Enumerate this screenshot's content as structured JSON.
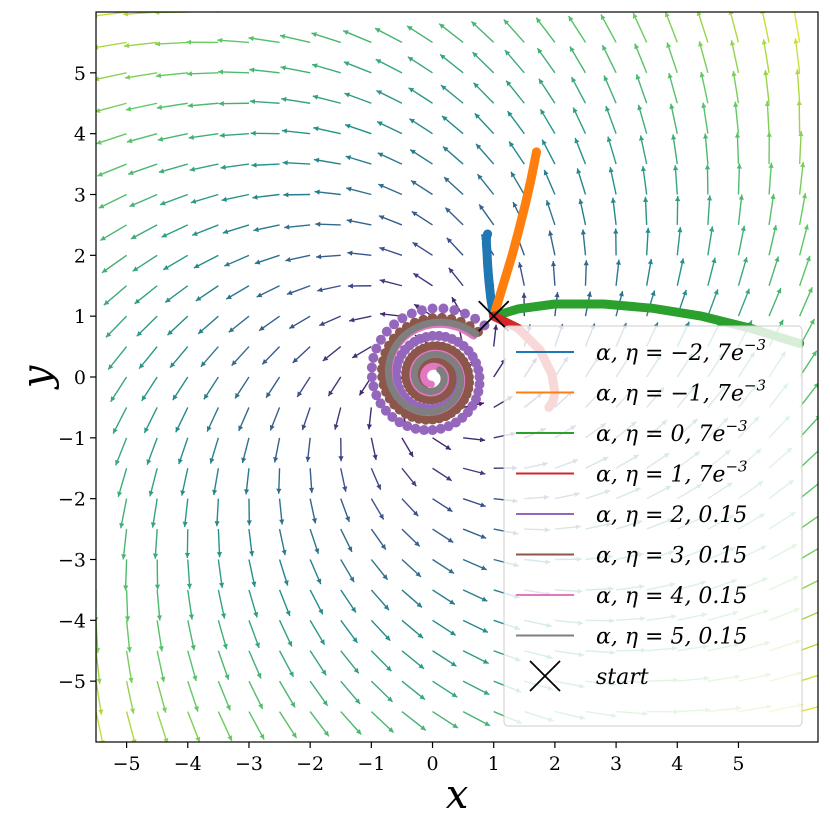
{
  "chart_data": {
    "type": "scatter",
    "subtype": "vector-field-with-trajectories",
    "title": "",
    "xlabel": "x",
    "ylabel": "y",
    "xlim": [
      -5.5,
      6.3
    ],
    "ylim": [
      -6.0,
      6.0
    ],
    "xticks": [
      "−5",
      "−4",
      "−3",
      "−2",
      "−1",
      "0",
      "1",
      "2",
      "3",
      "4",
      "5"
    ],
    "yticks": [
      "−5",
      "−4",
      "−3",
      "−2",
      "−1",
      "0",
      "1",
      "2",
      "3",
      "4",
      "5"
    ],
    "xtick_values": [
      -5,
      -4,
      -3,
      -2,
      -1,
      0,
      1,
      2,
      3,
      4,
      5
    ],
    "ytick_values": [
      -5,
      -4,
      -3,
      -2,
      -1,
      0,
      1,
      2,
      3,
      4,
      5
    ],
    "grid": false,
    "legend_position": "bottom-right",
    "field": {
      "description_of_rule": "rotational vector field with outward drift",
      "grid_min": -5.5,
      "grid_max": 6.0,
      "grid_step": 0.5,
      "colormap": "viridis"
    },
    "start": {
      "x": 1.0,
      "y": 1.0,
      "label": "start",
      "color": "#000000"
    },
    "series": [
      {
        "name": "α, η = −2, 7e−3",
        "color": "#1f77b4",
        "x": [
          1.0,
          0.95,
          0.92,
          0.9,
          0.89,
          0.88,
          0.88,
          0.9
        ],
        "y": [
          1.0,
          1.3,
          1.6,
          1.85,
          2.05,
          2.2,
          2.3,
          2.35
        ]
      },
      {
        "name": "α, η = −1, 7e−3",
        "color": "#ff7f0e",
        "x": [
          1.0,
          1.15,
          1.3,
          1.42,
          1.52,
          1.6,
          1.66,
          1.7
        ],
        "y": [
          1.0,
          1.5,
          2.0,
          2.45,
          2.85,
          3.2,
          3.5,
          3.7
        ]
      },
      {
        "name": "α, η = 0, 7e−3",
        "color": "#2ca02c",
        "x": [
          1.0,
          1.4,
          2.0,
          2.8,
          3.6,
          4.4,
          5.2,
          6.0
        ],
        "y": [
          1.0,
          1.12,
          1.2,
          1.2,
          1.13,
          1.0,
          0.8,
          0.55
        ]
      },
      {
        "name": "α, η = 1, 7e−3",
        "color": "#d62728",
        "x": [
          1.0,
          1.4,
          1.75,
          1.95,
          2.0,
          1.97,
          1.9
        ],
        "y": [
          1.0,
          0.8,
          0.45,
          0.05,
          -0.25,
          -0.4,
          -0.5
        ]
      },
      {
        "name": "α, η = 2, 0.15",
        "color": "#9467bd",
        "x": [],
        "y": []
      },
      {
        "name": "α, η = 3, 0.15",
        "color": "#8c564b",
        "x": [],
        "y": []
      },
      {
        "name": "α, η = 4, 0.15",
        "color": "#e377c2",
        "x": [],
        "y": []
      },
      {
        "name": "α, η = 5, 0.15",
        "color": "#7f7f7f",
        "x": [],
        "y": []
      }
    ],
    "spirals": [
      {
        "series": "α, η = 2, 0.15",
        "center_x": 0.0,
        "center_y": 0.0,
        "r_start": 1.2,
        "turns": 2.2,
        "shrink": 0.88,
        "marker": "dot"
      },
      {
        "series": "α, η = 3, 0.15",
        "center_x": 0.0,
        "center_y": 0.0,
        "r_start": 1.05,
        "turns": 2.5,
        "shrink": 0.85,
        "marker": "dot"
      },
      {
        "series": "α, η = 4, 0.15",
        "center_x": 0.0,
        "center_y": 0.0,
        "r_start": 0.95,
        "turns": 2.6,
        "shrink": 0.82,
        "marker": "line"
      },
      {
        "series": "α, η = 5, 0.15",
        "center_x": 0.0,
        "center_y": 0.0,
        "r_start": 1.0,
        "turns": 2.0,
        "shrink": 0.8,
        "marker": "line"
      }
    ],
    "legend_labels": [
      {
        "prefix": "α, η = ",
        "value": "−2, 7",
        "suffix_base": "e",
        "sup": "−3"
      },
      {
        "prefix": "α, η = ",
        "value": "−1, 7",
        "suffix_base": "e",
        "sup": "−3"
      },
      {
        "prefix": "α, η = ",
        "value": "0, 7",
        "suffix_base": "e",
        "sup": "−3"
      },
      {
        "prefix": "α, η = ",
        "value": "1, 7",
        "suffix_base": "e",
        "sup": "−3"
      },
      {
        "prefix": "α, η = ",
        "value": "2, 0.15",
        "suffix_base": "",
        "sup": ""
      },
      {
        "prefix": "α, η = ",
        "value": "3, 0.15",
        "suffix_base": "",
        "sup": ""
      },
      {
        "prefix": "α, η = ",
        "value": "4, 0.15",
        "suffix_base": "",
        "sup": ""
      },
      {
        "prefix": "α, η = ",
        "value": "5, 0.15",
        "suffix_base": "",
        "sup": ""
      }
    ],
    "legend_start_label": "start"
  }
}
